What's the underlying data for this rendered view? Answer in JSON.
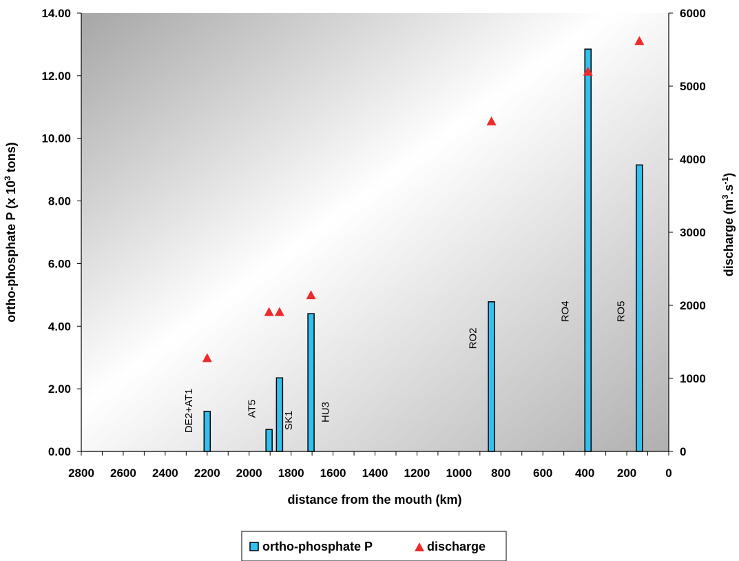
{
  "chart_data": {
    "type": "bar",
    "xlabel": "distance from the mouth (km)",
    "ylabel": "ortho-phosphate P (x 10 3 tons)",
    "ylabel_parts": {
      "base": "ortho-phosphate P (x 10",
      "sup": "3",
      "rest": " tons)"
    },
    "y2label": "discharge (m 3.s-1)",
    "y2label_parts": {
      "base": "discharge (m",
      "sup1": "3",
      "mid": ".s",
      "sup2": "-1",
      "rest": ")"
    },
    "xlim": [
      2800,
      0
    ],
    "x_reversed": true,
    "ylim": [
      0,
      14
    ],
    "y2lim": [
      0,
      6000
    ],
    "x_ticks": [
      "2800",
      "2600",
      "2400",
      "2200",
      "2000",
      "1800",
      "1600",
      "1400",
      "1200",
      "1000",
      "800",
      "600",
      "400",
      "200",
      "0"
    ],
    "y_ticks": [
      "0.00",
      "2.00",
      "4.00",
      "6.00",
      "8.00",
      "10.00",
      "12.00",
      "14.00"
    ],
    "y2_ticks": [
      "0",
      "1000",
      "2000",
      "3000",
      "4000",
      "5000",
      "6000"
    ],
    "stations": [
      {
        "label": "DE2+AT1",
        "x": 2200,
        "phosphate": 1.28,
        "discharge": 1280
      },
      {
        "label": "AT5",
        "x": 1905,
        "phosphate": 0.7,
        "discharge": null
      },
      {
        "label": "SK1",
        "x": 1855,
        "phosphate": 2.35,
        "discharge": null
      },
      {
        "label": "HU3",
        "x": 1705,
        "phosphate": 4.4,
        "discharge": 2140
      },
      {
        "label": "RO2",
        "x": 845,
        "phosphate": 4.78,
        "discharge": 4520
      },
      {
        "label": "RO4",
        "x": 385,
        "phosphate": 12.85,
        "discharge": 5200
      },
      {
        "label": "RO5",
        "x": 140,
        "phosphate": 9.15,
        "discharge": 5620
      }
    ],
    "extra_discharge_points": [
      {
        "x": 1905,
        "discharge": 1910
      },
      {
        "x": 1855,
        "discharge": 1910
      }
    ],
    "series": [
      {
        "name": "ortho-phosphate P",
        "type": "bar",
        "axis": "left",
        "color": "#33c0ee"
      },
      {
        "name": "discharge",
        "type": "scatter",
        "marker": "triangle",
        "axis": "right",
        "color": "#ee2a2a"
      }
    ],
    "legend": {
      "placement": "bottom-center",
      "items": [
        "ortho-phosphate P",
        "discharge"
      ]
    },
    "background": "gradient-gray"
  }
}
